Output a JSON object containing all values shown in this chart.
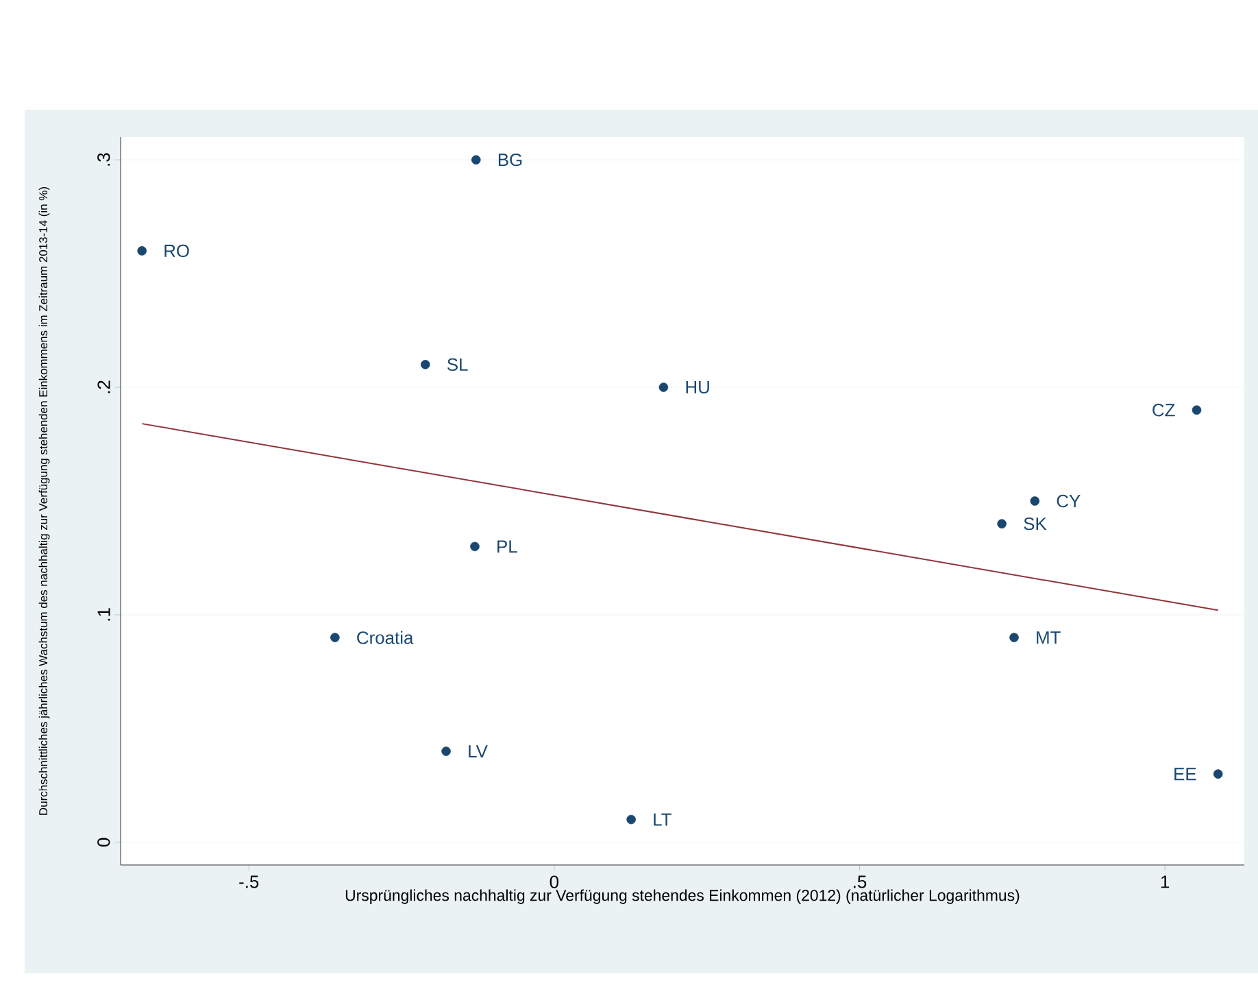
{
  "chart_data": {
    "type": "scatter",
    "xlabel": "Ursprüngliches nachhaltig zur Verfügung stehendes Einkommen (2012) (natürlicher Logarithmus)",
    "ylabel": "Durchschnittliches jährliches Wachstum des nachhaltig zur Verfügung stehenden Einkommens im Zeitraum 2013-14 (in %)",
    "xlim": [
      -0.71,
      1.13
    ],
    "ylim": [
      -0.01,
      0.31
    ],
    "xticks": [
      {
        "value": -0.5,
        "label": "-.5"
      },
      0,
      {
        "value": 0.5,
        "label": ".5"
      },
      1
    ],
    "yticks": [
      0,
      {
        "value": 0.1,
        "label": ".1"
      },
      {
        "value": 0.2,
        "label": ".2"
      },
      {
        "value": 0.3,
        "label": ".3"
      }
    ],
    "grid": "y",
    "marker": "circle",
    "series": [
      {
        "color": "#1a476f",
        "x": [
          -0.128,
          -0.675,
          -0.211,
          0.179,
          1.052,
          0.787,
          0.733,
          -0.13,
          -0.359,
          0.753,
          -0.177,
          0.126,
          1.087
        ],
        "values": [
          0.3,
          0.26,
          0.21,
          0.2,
          0.19,
          0.15,
          0.14,
          0.13,
          0.09,
          0.09,
          0.04,
          0.01,
          0.03
        ]
      },
      {
        "type": "line",
        "color": "#90353b",
        "marker": "none",
        "x": [
          -0.675,
          1.087
        ],
        "values": [
          0.184,
          0.102
        ]
      }
    ],
    "annotations": [
      {
        "text": "BG",
        "x": -0.128,
        "y": 0.3
      },
      {
        "text": "RO",
        "x": -0.675,
        "y": 0.26
      },
      {
        "text": "SL",
        "x": -0.211,
        "y": 0.21
      },
      {
        "text": "HU",
        "x": 0.179,
        "y": 0.2
      },
      {
        "text": "CZ",
        "x": 1.052,
        "y": 0.19
      },
      {
        "text": "CY",
        "x": 0.787,
        "y": 0.15
      },
      {
        "text": "SK",
        "x": 0.733,
        "y": 0.14
      },
      {
        "text": "PL",
        "x": -0.13,
        "y": 0.13
      },
      {
        "text": "Croatia",
        "x": -0.359,
        "y": 0.09
      },
      {
        "text": "MT",
        "x": 0.753,
        "y": 0.09
      },
      {
        "text": "LV",
        "x": -0.177,
        "y": 0.04
      },
      {
        "text": "LT",
        "x": 0.126,
        "y": 0.01
      },
      {
        "text": "EE",
        "x": 1.087,
        "y": 0.03
      }
    ]
  }
}
